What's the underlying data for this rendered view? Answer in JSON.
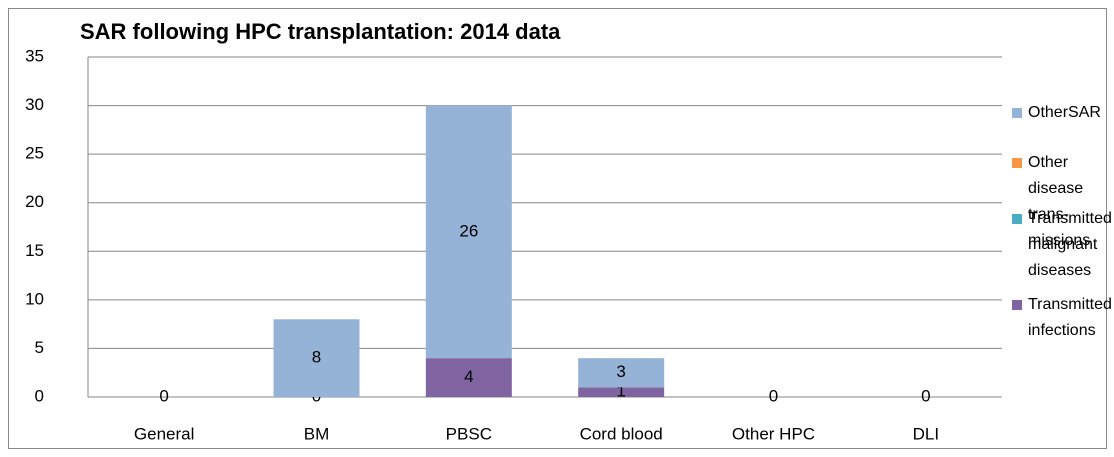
{
  "chart_data": {
    "type": "stacked_bar",
    "title": "SAR following HPC transplantation: 2014 data",
    "categories": [
      "General",
      "BM",
      "PBSC",
      "Cord blood",
      "Other HPC",
      "DLI"
    ],
    "series": [
      {
        "name": "Transmitted infections",
        "color": "#8064a2",
        "values": [
          0,
          0,
          4,
          1,
          0,
          0
        ]
      },
      {
        "name": "Transmitted malignant diseases",
        "color": "#4bacc6",
        "values": [
          0,
          0,
          0,
          0,
          0,
          0
        ]
      },
      {
        "name": "Other disease trans-missions",
        "color": "#f79646",
        "values": [
          0,
          0,
          0,
          0,
          0,
          0
        ]
      },
      {
        "name": "OtherSAR",
        "color": "#95b3d7",
        "values": [
          0,
          8,
          26,
          3,
          0,
          0
        ]
      }
    ],
    "ylim": [
      0,
      35
    ],
    "yticks": [
      0,
      5,
      10,
      15,
      20,
      25,
      30,
      35
    ],
    "grid": true,
    "legend": "right"
  }
}
